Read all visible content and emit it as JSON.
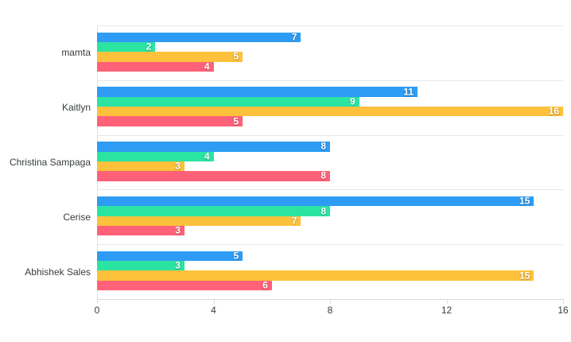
{
  "chart_data": {
    "type": "bar",
    "orientation": "horizontal",
    "title": "",
    "xlabel": "",
    "ylabel": "",
    "categories": [
      "mamta",
      "Kaitlyn",
      "Christina Sampaga",
      "Cerise",
      "Abhishek Sales"
    ],
    "series": [
      {
        "name": "blue",
        "color": "#2E9CF4",
        "values": [
          7,
          11,
          8,
          15,
          5
        ]
      },
      {
        "name": "green",
        "color": "#2BE4A2",
        "values": [
          2,
          9,
          4,
          8,
          3
        ]
      },
      {
        "name": "yellow",
        "color": "#FDC13C",
        "values": [
          5,
          16,
          3,
          7,
          15
        ]
      },
      {
        "name": "red",
        "color": "#FF6178",
        "values": [
          4,
          5,
          8,
          3,
          6
        ]
      }
    ],
    "xlim": [
      0,
      16
    ],
    "x_ticks": [
      0,
      4,
      8,
      12,
      16
    ],
    "x_tick_labels": [
      "0",
      "4",
      "8",
      "12",
      "16"
    ],
    "grid": "category-band-separators",
    "legend_position": "none",
    "data_labels": {
      "visible": true,
      "color": "#ffffff",
      "position": "inside-end"
    }
  },
  "style_colors": {
    "background": "#ffffff",
    "grid_line": "#e7e7e7",
    "axis_line": "#dcdcdc",
    "text": "#373d3f"
  }
}
